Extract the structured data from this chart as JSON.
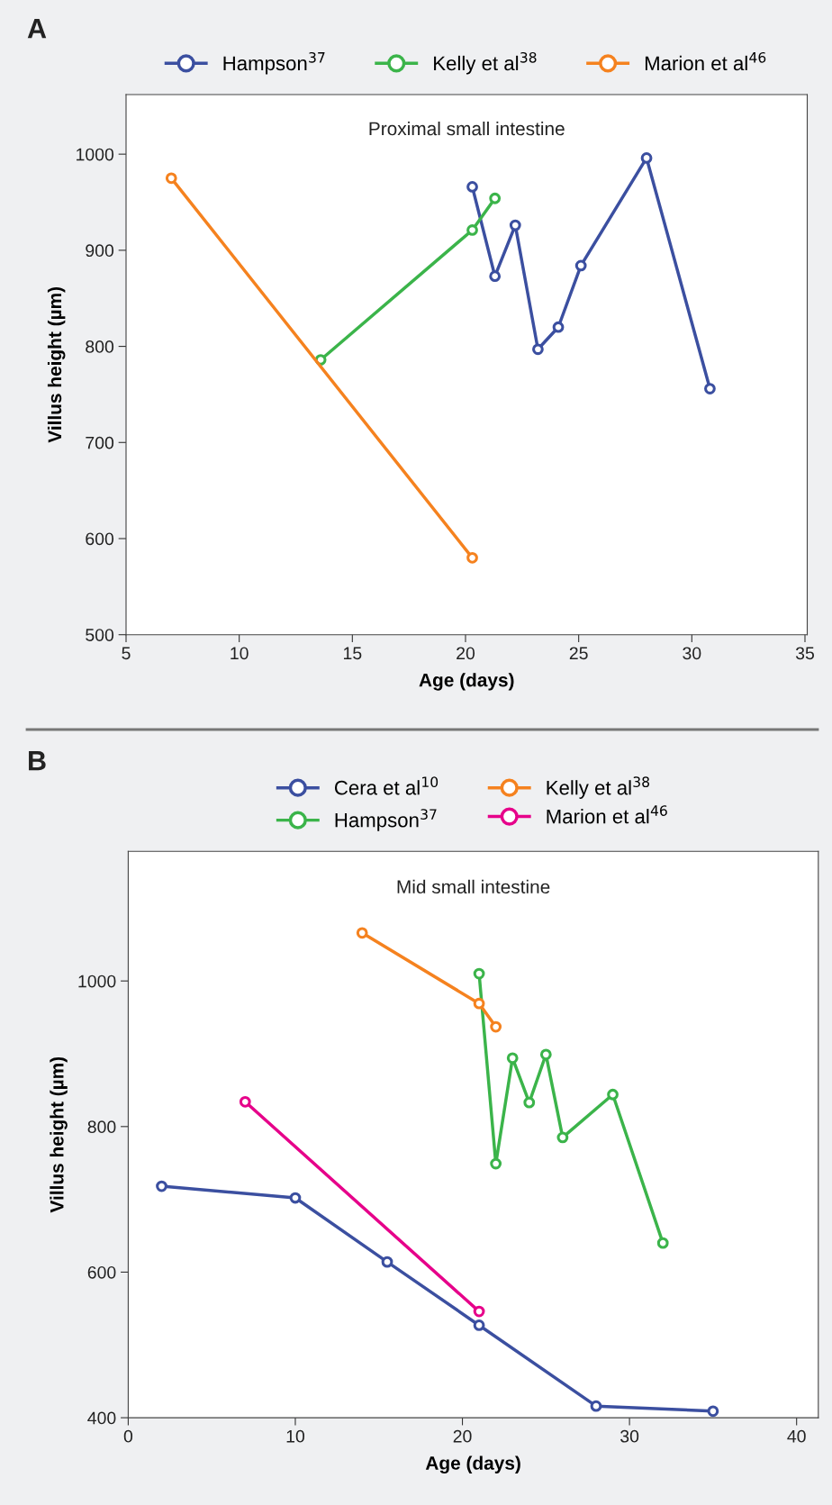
{
  "chart_data": [
    {
      "type": "line",
      "title": "Proximal small intestine",
      "xlabel": "Age (days)",
      "ylabel": "Villus height (µm)",
      "annotations": [
        "A"
      ],
      "xlim": [
        5,
        35.1
      ],
      "xticks": [
        5,
        10,
        15,
        20,
        25,
        30,
        35
      ],
      "ylim": [
        500,
        1062
      ],
      "yticks": [
        500,
        600,
        700,
        800,
        900,
        1000
      ],
      "grid": false,
      "legend": "top",
      "marker": "circle",
      "line_style": "solid",
      "series": [
        {
          "name": "Hampson$^{37}$",
          "color": "#3b4fa0",
          "x": [
            20.3,
            21.3,
            22.2,
            23.2,
            24.1,
            25.1,
            28.0,
            30.8
          ],
          "values": [
            966,
            873,
            926,
            797,
            820,
            884,
            996,
            756
          ]
        },
        {
          "name": "Kelly et al$^{38}$",
          "color": "#3bb44a",
          "x": [
            13.6,
            20.3,
            21.3
          ],
          "values": [
            786,
            921,
            954
          ]
        },
        {
          "name": "Marion et al$^{46}$",
          "color": "#f5821f",
          "x": [
            7.0,
            20.3
          ],
          "values": [
            975,
            580
          ]
        }
      ]
    },
    {
      "type": "line",
      "title": "Mid small intestine",
      "xlabel": "Age (days)",
      "ylabel": "Villus height (µm)",
      "annotations": [
        "B"
      ],
      "xlim": [
        0,
        41.3
      ],
      "xticks": [
        0,
        10,
        20,
        30,
        40
      ],
      "ylim": [
        400,
        1178
      ],
      "yticks": [
        400,
        600,
        800,
        1000
      ],
      "grid": false,
      "legend": "top",
      "marker": "circle",
      "line_style": "solid",
      "series": [
        {
          "name": "Cera et al$^{10}$",
          "color": "#3b4fa0",
          "x": [
            2,
            10,
            15.5,
            21,
            28,
            35
          ],
          "values": [
            718,
            702,
            614,
            527,
            416,
            409
          ]
        },
        {
          "name": "Hampson$^{37}$",
          "color": "#3bb44a",
          "x": [
            21,
            22,
            23,
            24,
            25,
            26,
            29,
            32
          ],
          "values": [
            1010,
            749,
            894,
            833,
            899,
            785,
            844,
            640
          ]
        },
        {
          "name": "Kelly et al$^{38}$",
          "color": "#f5821f",
          "x": [
            14,
            21,
            22
          ],
          "values": [
            1066,
            969,
            937
          ]
        },
        {
          "name": "Marion et al$^{46}$",
          "color": "#e6008a",
          "x": [
            7,
            21
          ],
          "values": [
            834,
            546
          ]
        }
      ]
    }
  ]
}
